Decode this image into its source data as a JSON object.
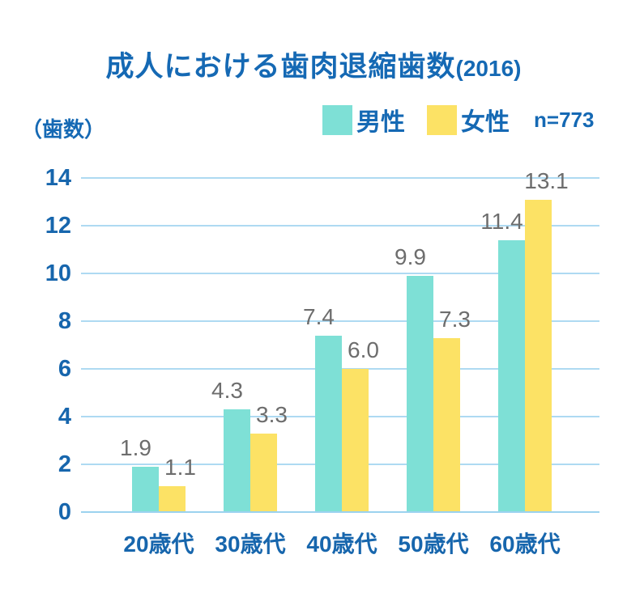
{
  "title": {
    "main": "成人における歯肉退縮歯数",
    "year_suffix": "(2016)"
  },
  "axis_unit_label": "（歯数）",
  "legend": {
    "male": "男性",
    "female": "女性",
    "sample_size": "n=773"
  },
  "colors": {
    "male": "#7ee0d6",
    "female": "#fce265",
    "text_blue": "#1569b4",
    "tick_blue": "#1766ad",
    "gridline": "#aedaf2",
    "axis_line": "#9bd2ef",
    "value_label": "#6d6d6d"
  },
  "chart_data": {
    "type": "bar",
    "title": "成人における歯肉退縮歯数(2016)",
    "ylabel": "（歯数）",
    "annotation": "n=773",
    "categories": [
      "20歳代",
      "30歳代",
      "40歳代",
      "50歳代",
      "60歳代"
    ],
    "series": [
      {
        "name": "男性",
        "values": [
          1.9,
          4.3,
          7.4,
          9.9,
          11.4
        ]
      },
      {
        "name": "女性",
        "values": [
          1.1,
          3.3,
          6.0,
          7.3,
          13.1
        ]
      }
    ],
    "ylim": [
      0,
      14
    ],
    "ytick_step": 2,
    "grid": true,
    "legend_position": "top-right",
    "value_labels_shown": true
  }
}
